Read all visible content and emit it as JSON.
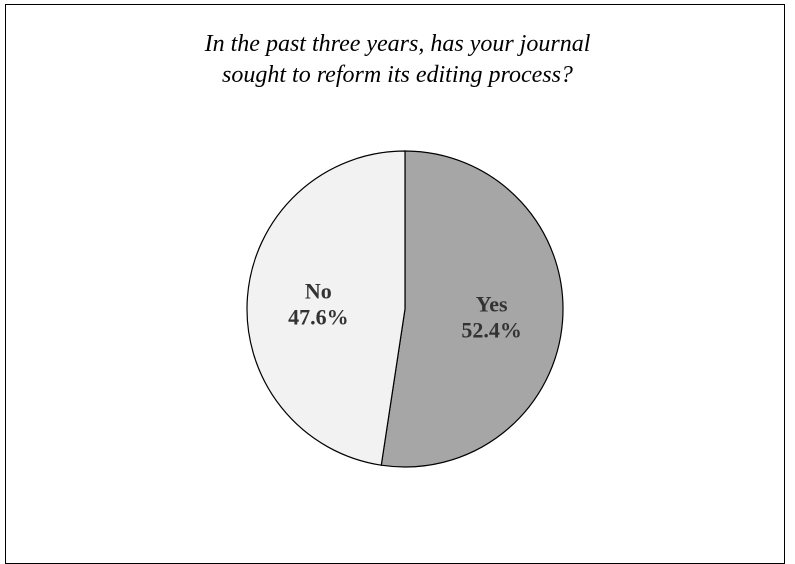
{
  "chart_data": {
    "type": "pie",
    "title": "In the past three years, has your journal sought to reform its editing process?",
    "title_lines": [
      "In the past three years, has your journal",
      "sought to reform its editing process?"
    ],
    "slices": [
      {
        "label": "Yes",
        "value": 52.4,
        "value_label": "52.4%",
        "color": "#a6a6a6"
      },
      {
        "label": "No",
        "value": 47.6,
        "value_label": "47.6%",
        "color": "#f2f2f2"
      }
    ],
    "start_angle": "12 o'clock",
    "direction": "clockwise",
    "legend": "none",
    "labels": "inside"
  }
}
